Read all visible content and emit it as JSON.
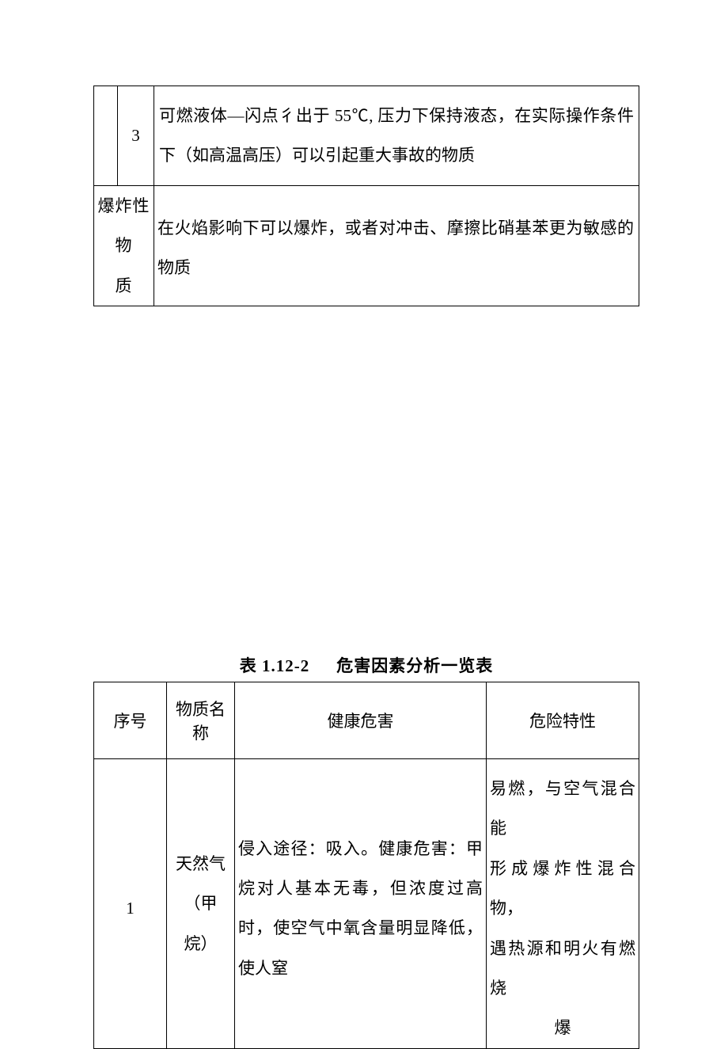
{
  "table1": {
    "row1": {
      "num": "3",
      "desc": "可燃液体—闪点彳出于 55℃, 压力下保持液态，在实际操作条件下（如高温高压）可以引起重大事故的物质"
    },
    "row2": {
      "label_line1": "爆炸性物",
      "label_line2": "质",
      "desc": "在火焰影响下可以爆炸，或者对冲击、摩擦比硝基苯更为敏感的物质"
    }
  },
  "caption": {
    "left": "表 1.12-2",
    "right": "危害因素分析一览表"
  },
  "table2": {
    "headers": {
      "h1": "序号",
      "h2": "物质名称",
      "h3": "健康危害",
      "h4": "危险特性"
    },
    "row1": {
      "seq": "1",
      "name_l1": "天然气",
      "name_l2": "（甲",
      "name_l3": "烷）",
      "health": "侵入途径：吸入。健康危害：甲烷对人基本无毒，但浓度过高时，使空气中氧含量明显降低，使人窒",
      "danger_l1": "易燃，与空气混合能",
      "danger_l2": "形成爆炸性混合物，",
      "danger_l3": "遇热源和明火有燃烧",
      "danger_l4": "爆"
    }
  },
  "colors": {
    "bg": "#ffffff",
    "text": "#000000",
    "border": "#000000"
  },
  "typography": {
    "body_fontsize": 21,
    "caption_fontsize": 21,
    "font_family": "SimSun"
  }
}
